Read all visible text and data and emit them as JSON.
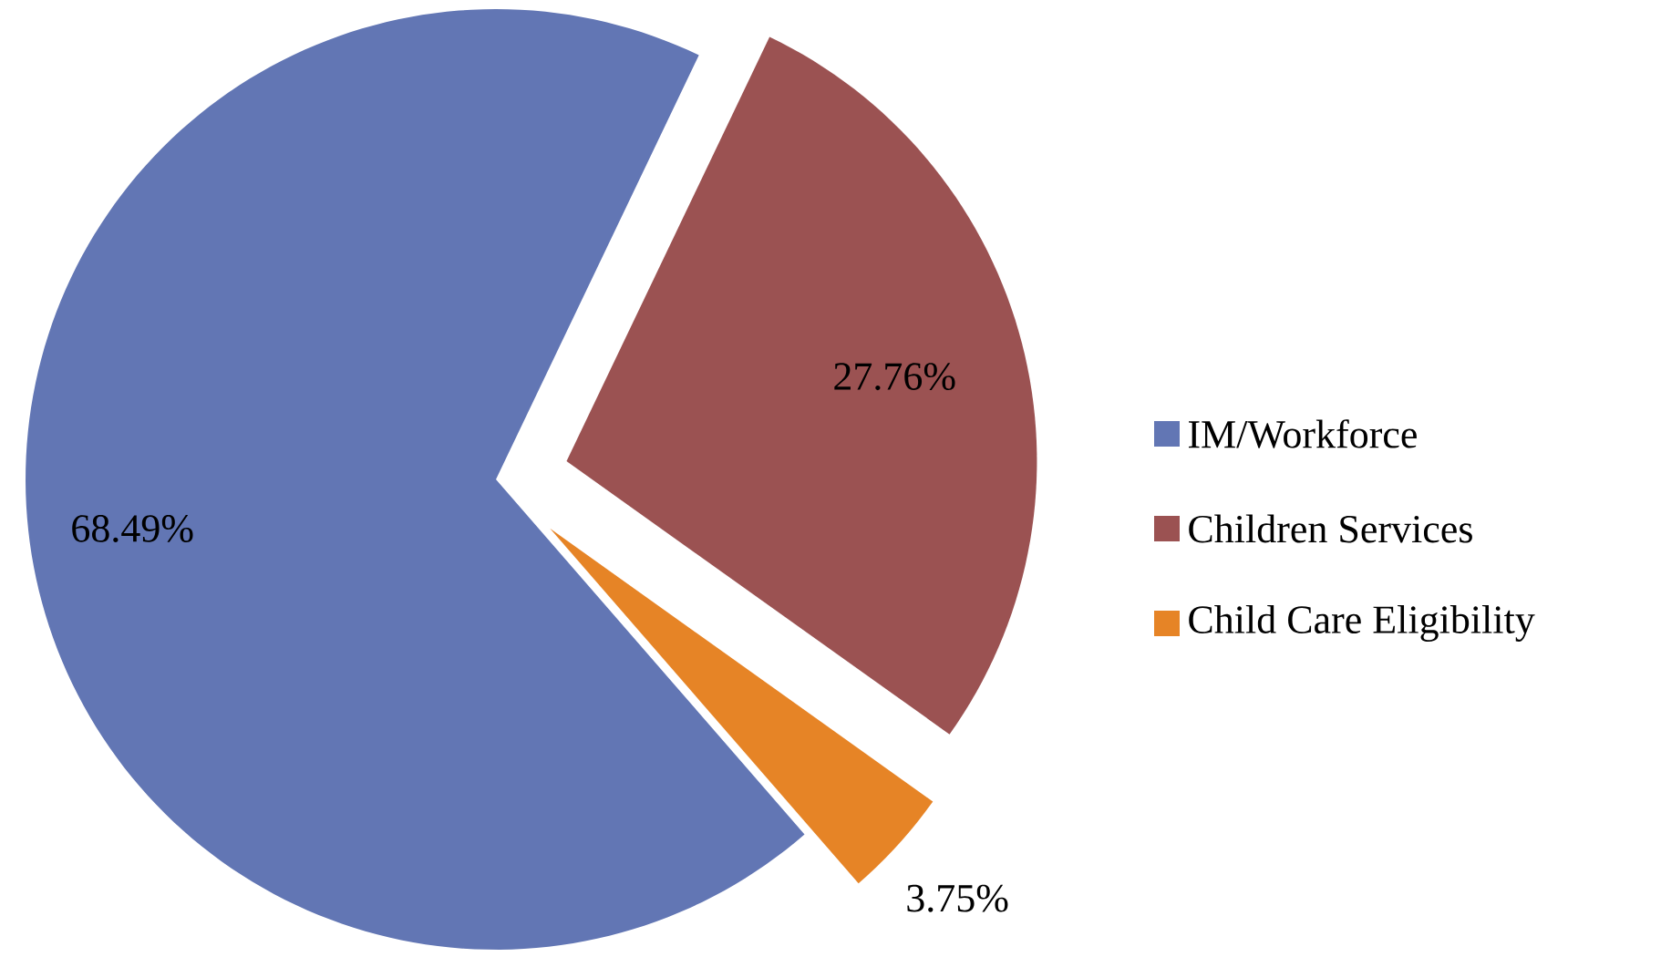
{
  "chart_data": {
    "type": "pie",
    "categories": [
      "IM/Workforce",
      "Children Services",
      "Child Care Eligibility"
    ],
    "values": [
      68.49,
      27.76,
      3.75
    ],
    "value_labels": [
      "68.49%",
      "27.76%",
      "3.75%"
    ],
    "colors": [
      "#6276b4",
      "#9b5252",
      "#e68426"
    ],
    "legend": "right"
  }
}
